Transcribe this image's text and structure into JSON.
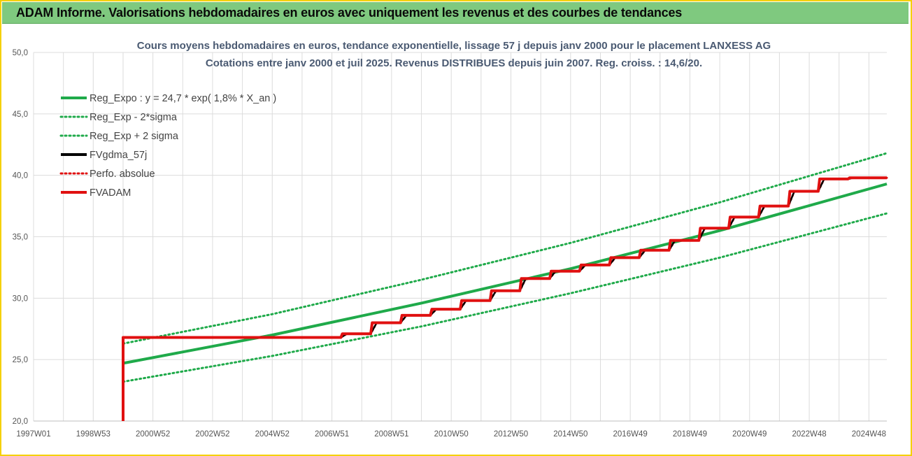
{
  "header": {
    "title": "ADAM Informe. Valorisations hebdomadaires en euros avec uniquement les revenus et des courbes de tendances"
  },
  "chart_data": {
    "type": "line",
    "title_lines": [
      "Cours moyens hebdomadaires en euros, tendance exponentielle, lissage 57 j depuis janv 2000 pour le placement LANXESS AG",
      "Cotations entre janv 2000 et juil 2025. Revenus DISTRIBUES depuis juin 2007. Reg. croiss. : 14,6/20."
    ],
    "xlabel": "",
    "ylabel": "",
    "xlim": [
      1997.0,
      2025.6
    ],
    "ylim": [
      20,
      50
    ],
    "y_ticks": [
      "20,0",
      "25,0",
      "30,0",
      "35,0",
      "40,0",
      "45,0",
      "50,0"
    ],
    "y_tick_values": [
      20,
      25,
      30,
      35,
      40,
      45,
      50
    ],
    "x_ticks": [
      "1997W01",
      "1998W53",
      "2000W52",
      "2002W52",
      "2004W52",
      "2006W51",
      "2008W51",
      "2010W50",
      "2012W50",
      "2014W50",
      "2016W49",
      "2018W49",
      "2020W49",
      "2022W48",
      "2024W48"
    ],
    "x_tick_values": [
      1997.0,
      1999.0,
      2001.0,
      2003.0,
      2005.0,
      2007.0,
      2009.0,
      2011.0,
      2013.0,
      2015.0,
      2017.0,
      2019.0,
      2021.0,
      2023.0,
      2025.0
    ],
    "grid": true,
    "legend_position": "top-left",
    "series": [
      {
        "name": "Reg_Expo : y = 24,7 * exp( 1,8% *  X_an )",
        "color": "#1faa4a",
        "style": "solid",
        "x": [
          2000.0,
          2005.0,
          2010.0,
          2015.0,
          2020.0,
          2025.6
        ],
        "values": [
          24.7,
          27.0,
          29.6,
          32.4,
          35.5,
          39.3
        ]
      },
      {
        "name": "Reg_Exp - 2*sigma",
        "color": "#1faa4a",
        "style": "dotted",
        "x": [
          2000.0,
          2005.0,
          2010.0,
          2015.0,
          2020.0,
          2025.6
        ],
        "values": [
          23.2,
          25.3,
          27.7,
          30.4,
          33.3,
          36.9
        ]
      },
      {
        "name": "Reg_Exp + 2 sigma",
        "color": "#1faa4a",
        "style": "dotted",
        "x": [
          2000.0,
          2005.0,
          2010.0,
          2015.0,
          2020.0,
          2025.6
        ],
        "values": [
          26.3,
          28.7,
          31.5,
          34.5,
          37.8,
          41.8
        ]
      },
      {
        "name": "FVgdma_57j",
        "color": "#000000",
        "style": "solid",
        "x": [
          2000.0,
          2007.3,
          2007.5,
          2008.3,
          2008.5,
          2009.3,
          2009.5,
          2010.3,
          2010.5,
          2011.3,
          2011.5,
          2012.3,
          2012.5,
          2013.3,
          2013.5,
          2014.3,
          2014.5,
          2015.3,
          2015.5,
          2016.3,
          2016.5,
          2017.3,
          2017.5,
          2018.3,
          2018.5,
          2019.3,
          2019.5,
          2020.3,
          2020.5,
          2021.3,
          2021.5,
          2022.3,
          2022.5,
          2023.3,
          2023.5,
          2024.3,
          2024.5,
          2025.6
        ],
        "values": [
          26.8,
          26.8,
          27.1,
          27.1,
          28.0,
          28.0,
          28.6,
          28.6,
          29.1,
          29.1,
          29.8,
          29.8,
          30.6,
          30.6,
          31.6,
          31.6,
          32.2,
          32.2,
          32.7,
          32.7,
          33.3,
          33.3,
          33.9,
          33.9,
          34.7,
          34.7,
          35.7,
          35.7,
          36.6,
          36.6,
          37.5,
          37.5,
          38.7,
          38.7,
          39.7,
          39.7,
          39.8,
          39.8
        ]
      },
      {
        "name": "Perfo. absolue",
        "color": "#e01010",
        "style": "dotted",
        "x": [
          2000.0,
          2007.3,
          2007.5,
          2008.3,
          2008.5,
          2009.3,
          2009.5,
          2010.3,
          2010.5,
          2011.3,
          2011.5,
          2012.3,
          2012.5,
          2013.3,
          2013.5,
          2014.3,
          2014.5,
          2015.3,
          2015.5,
          2016.3,
          2016.5,
          2017.3,
          2017.5,
          2018.3,
          2018.5,
          2019.3,
          2019.5,
          2020.3,
          2020.5,
          2021.3,
          2021.5,
          2022.3,
          2022.5,
          2023.3,
          2023.5,
          2024.3,
          2024.5,
          2025.6
        ],
        "values": [
          26.8,
          26.8,
          27.1,
          27.1,
          28.0,
          28.0,
          28.6,
          28.6,
          29.1,
          29.1,
          29.8,
          29.8,
          30.6,
          30.6,
          31.6,
          31.6,
          32.2,
          32.2,
          32.7,
          32.7,
          33.3,
          33.3,
          33.9,
          33.9,
          34.7,
          34.7,
          35.7,
          35.7,
          36.6,
          36.6,
          37.5,
          37.5,
          38.7,
          38.7,
          39.7,
          39.7,
          39.8,
          39.8
        ]
      },
      {
        "name": "FVADAM",
        "color": "#e01010",
        "style": "solid",
        "x": [
          2000.0,
          2000.0,
          2007.3,
          2007.35,
          2008.3,
          2008.35,
          2009.3,
          2009.35,
          2010.3,
          2010.35,
          2011.3,
          2011.35,
          2012.3,
          2012.35,
          2013.3,
          2013.35,
          2014.3,
          2014.35,
          2015.3,
          2015.35,
          2016.3,
          2016.35,
          2017.3,
          2017.35,
          2018.3,
          2018.35,
          2019.3,
          2019.35,
          2020.3,
          2020.35,
          2021.3,
          2021.35,
          2022.3,
          2022.35,
          2023.3,
          2023.35,
          2024.3,
          2024.35,
          2025.6
        ],
        "values": [
          20.0,
          26.8,
          26.8,
          27.1,
          27.1,
          28.0,
          28.0,
          28.6,
          28.6,
          29.1,
          29.1,
          29.8,
          29.8,
          30.6,
          30.6,
          31.6,
          31.6,
          32.2,
          32.2,
          32.7,
          32.7,
          33.3,
          33.3,
          33.9,
          33.9,
          34.7,
          34.7,
          35.7,
          35.7,
          36.6,
          36.6,
          37.5,
          37.5,
          38.7,
          38.7,
          39.7,
          39.7,
          39.8,
          39.8
        ]
      }
    ]
  }
}
